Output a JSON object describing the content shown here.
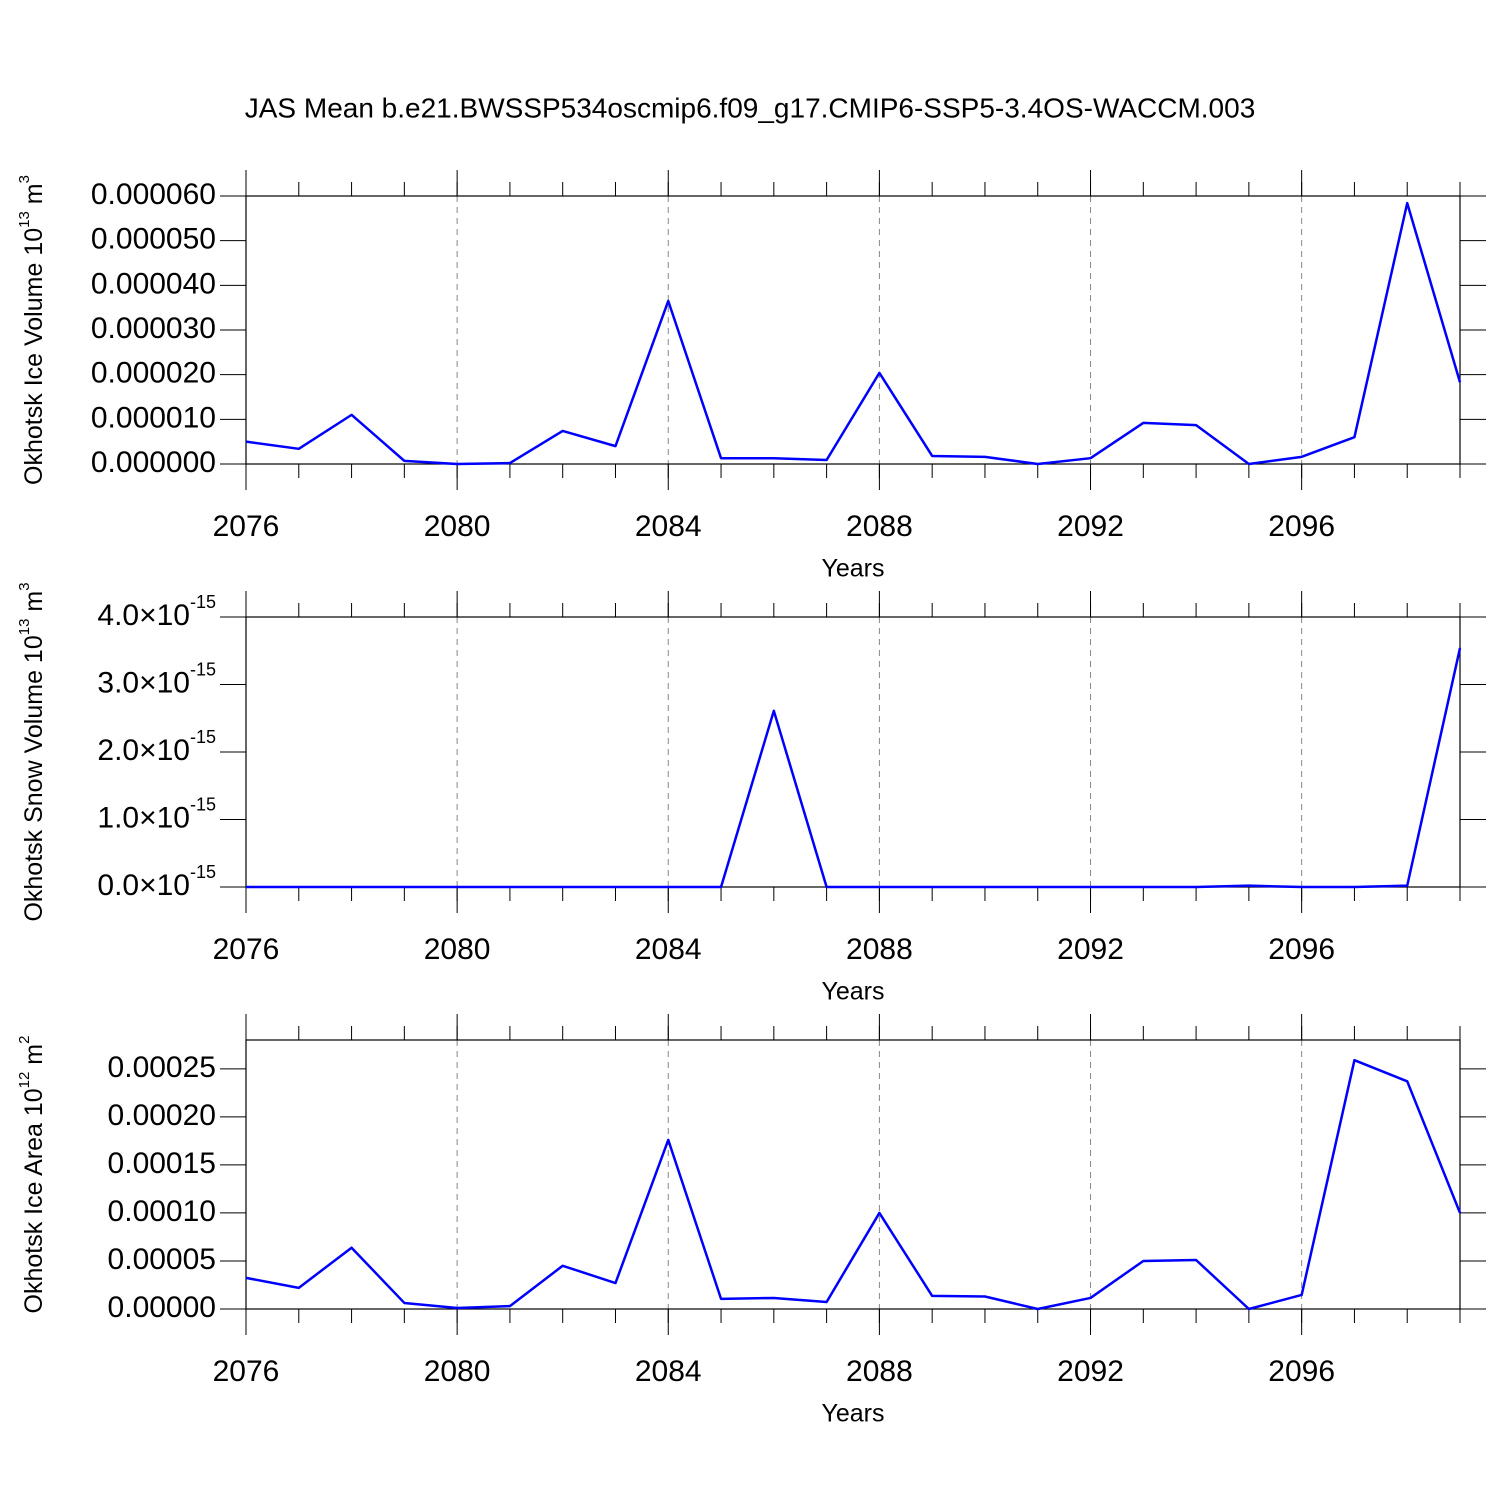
{
  "chart_data": [
    {
      "type": "line",
      "title": "JAS Mean b.e21.BWSSP534oscmip6.f09_g17.CMIP6-SSP5-3.4OS-WACCM.003",
      "ylabel": {
        "text": "Okhotsk Ice Volume 10",
        "power": "13",
        "unit": " m",
        "unit_power": "3"
      },
      "xlabel": "Years",
      "x": [
        2076,
        2077,
        2078,
        2079,
        2080,
        2081,
        2082,
        2083,
        2084,
        2085,
        2086,
        2087,
        2088,
        2089,
        2090,
        2091,
        2092,
        2093,
        2094,
        2095,
        2096,
        2097,
        2098,
        2099
      ],
      "values": [
        5e-06,
        3.4e-06,
        1.1e-05,
        7e-07,
        0.0,
        2e-07,
        7.4e-06,
        4e-06,
        3.65e-05,
        1.3e-06,
        1.3e-06,
        9e-07,
        2.04e-05,
        1.8e-06,
        1.6e-06,
        0.0,
        1.3e-06,
        9.2e-06,
        8.7e-06,
        0.0,
        1.6e-06,
        6e-06,
        5.84e-05,
        1.83e-05
      ],
      "color": "#0000ff",
      "xlim": [
        2076,
        2099
      ],
      "xticks": [
        2076,
        2080,
        2084,
        2088,
        2092,
        2096
      ],
      "xgrid": true,
      "ylim": [
        0,
        6e-05
      ],
      "yticks": [
        {
          "value": 0,
          "label": "0.000000"
        },
        {
          "value": 1e-05,
          "label": "0.000010"
        },
        {
          "value": 2e-05,
          "label": "0.000020"
        },
        {
          "value": 3e-05,
          "label": "0.000030"
        },
        {
          "value": 4e-05,
          "label": "0.000040"
        },
        {
          "value": 5e-05,
          "label": "0.000050"
        },
        {
          "value": 6e-05,
          "label": "0.000060"
        }
      ]
    },
    {
      "type": "line",
      "ylabel": {
        "text": "Okhotsk Snow Volume 10",
        "power": "13",
        "unit": " m",
        "unit_power": "3"
      },
      "xlabel": "Years",
      "x": [
        2076,
        2077,
        2078,
        2079,
        2080,
        2081,
        2082,
        2083,
        2084,
        2085,
        2086,
        2087,
        2088,
        2089,
        2090,
        2091,
        2092,
        2093,
        2094,
        2095,
        2096,
        2097,
        2098,
        2099
      ],
      "values": [
        0,
        0,
        0,
        0,
        0,
        0,
        0,
        0,
        0,
        0,
        2.61e-15,
        0,
        0,
        0,
        0,
        0,
        0,
        0,
        0,
        2e-17,
        0,
        0,
        2e-17,
        3.54e-15
      ],
      "color": "#0000ff",
      "xlim": [
        2076,
        2099
      ],
      "xticks": [
        2076,
        2080,
        2084,
        2088,
        2092,
        2096
      ],
      "xgrid": true,
      "ylim": [
        0,
        4e-15
      ],
      "yticks": [
        {
          "value": 0,
          "label": "0.0×10",
          "exponent": "-15"
        },
        {
          "value": 1e-15,
          "label": "1.0×10",
          "exponent": "-15"
        },
        {
          "value": 2e-15,
          "label": "2.0×10",
          "exponent": "-15"
        },
        {
          "value": 3e-15,
          "label": "3.0×10",
          "exponent": "-15"
        },
        {
          "value": 4e-15,
          "label": "4.0×10",
          "exponent": "-15"
        }
      ]
    },
    {
      "type": "line",
      "ylabel": {
        "text": "Okhotsk Ice Area 10",
        "power": "12",
        "unit": " m",
        "unit_power": "2"
      },
      "xlabel": "Years",
      "x": [
        2076,
        2077,
        2078,
        2079,
        2080,
        2081,
        2082,
        2083,
        2084,
        2085,
        2086,
        2087,
        2088,
        2089,
        2090,
        2091,
        2092,
        2093,
        2094,
        2095,
        2096,
        2097,
        2098,
        2099
      ],
      "values": [
        3.24e-05,
        2.2e-05,
        6.38e-05,
        6.3e-06,
        1e-06,
        3e-06,
        4.5e-05,
        2.7e-05,
        0.000176,
        1.05e-05,
        1.15e-05,
        7.3e-06,
        0.0001,
        1.36e-05,
        1.3e-05,
        0.0,
        1.15e-05,
        5e-05,
        5.1e-05,
        0.0,
        1.46e-05,
        0.000259,
        0.000237,
        0.0001
      ],
      "color": "#0000ff",
      "xlim": [
        2076,
        2099
      ],
      "xticks": [
        2076,
        2080,
        2084,
        2088,
        2092,
        2096
      ],
      "xgrid": true,
      "ylim": [
        0,
        0.00028
      ],
      "yticks": [
        {
          "value": 0,
          "label": "0.00000"
        },
        {
          "value": 5e-05,
          "label": "0.00005"
        },
        {
          "value": 0.0001,
          "label": "0.00010"
        },
        {
          "value": 0.00015,
          "label": "0.00015"
        },
        {
          "value": 0.0002,
          "label": "0.00020"
        },
        {
          "value": 0.00025,
          "label": "0.00025"
        }
      ]
    }
  ]
}
